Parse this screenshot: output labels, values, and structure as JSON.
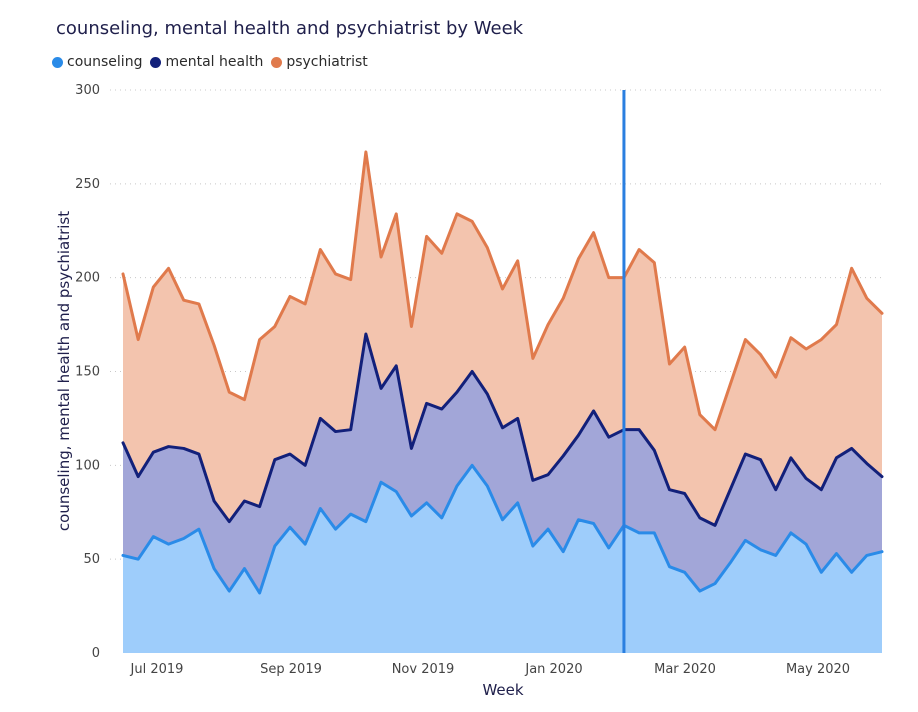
{
  "chart_data": {
    "type": "area",
    "stacked": true,
    "title": "counseling, mental health and psychiatrist by Week",
    "xlabel": "Week",
    "ylabel": "counseling, mental health and psychiatrist",
    "ylim": [
      0,
      300
    ],
    "yticks": [
      0,
      50,
      100,
      150,
      200,
      250,
      300
    ],
    "xtick_labels": [
      "Jul 2019",
      "Sep 2019",
      "Nov 2019",
      "Jan 2020",
      "Mar 2020",
      "May 2020"
    ],
    "grid": "horizontal dotted",
    "legend_position": "top-left",
    "cursor_line_week_index": 33,
    "colors": {
      "counseling": "#2a8be8",
      "mental_health": "#12207a",
      "psychiatrist": "#e07a4c",
      "counseling_fill": "#9ecdfb",
      "mental_health_fill": "#a2a6d8",
      "psychiatrist_fill": "#f3c4ae",
      "cursor": "#2a7fe0"
    },
    "series": [
      {
        "name": "counseling",
        "values": [
          52,
          50,
          62,
          58,
          61,
          66,
          45,
          33,
          45,
          32,
          57,
          67,
          58,
          77,
          66,
          74,
          70,
          91,
          86,
          73,
          80,
          72,
          89,
          100,
          89,
          71,
          80,
          57,
          66,
          54,
          71,
          69,
          56,
          68,
          64,
          64,
          46,
          43,
          33,
          37,
          48,
          60,
          55,
          52,
          64,
          58,
          43,
          53,
          43,
          52,
          54
        ]
      },
      {
        "name": "mental health",
        "values": [
          112,
          94,
          107,
          110,
          109,
          106,
          81,
          70,
          81,
          78,
          103,
          106,
          100,
          125,
          118,
          119,
          170,
          141,
          153,
          109,
          133,
          130,
          139,
          150,
          138,
          120,
          125,
          92,
          95,
          105,
          116,
          129,
          115,
          119,
          119,
          108,
          87,
          85,
          72,
          68,
          87,
          106,
          103,
          87,
          104,
          93,
          87,
          104,
          109,
          101,
          94
        ]
      },
      {
        "name": "psychiatrist",
        "values": [
          202,
          167,
          195,
          205,
          188,
          186,
          164,
          139,
          135,
          167,
          174,
          190,
          186,
          215,
          202,
          199,
          267,
          211,
          234,
          174,
          222,
          213,
          234,
          230,
          216,
          194,
          209,
          157,
          175,
          189,
          210,
          224,
          200,
          200,
          215,
          208,
          154,
          163,
          127,
          119,
          143,
          167,
          159,
          147,
          168,
          162,
          167,
          175,
          205,
          189,
          181
        ]
      }
    ]
  }
}
